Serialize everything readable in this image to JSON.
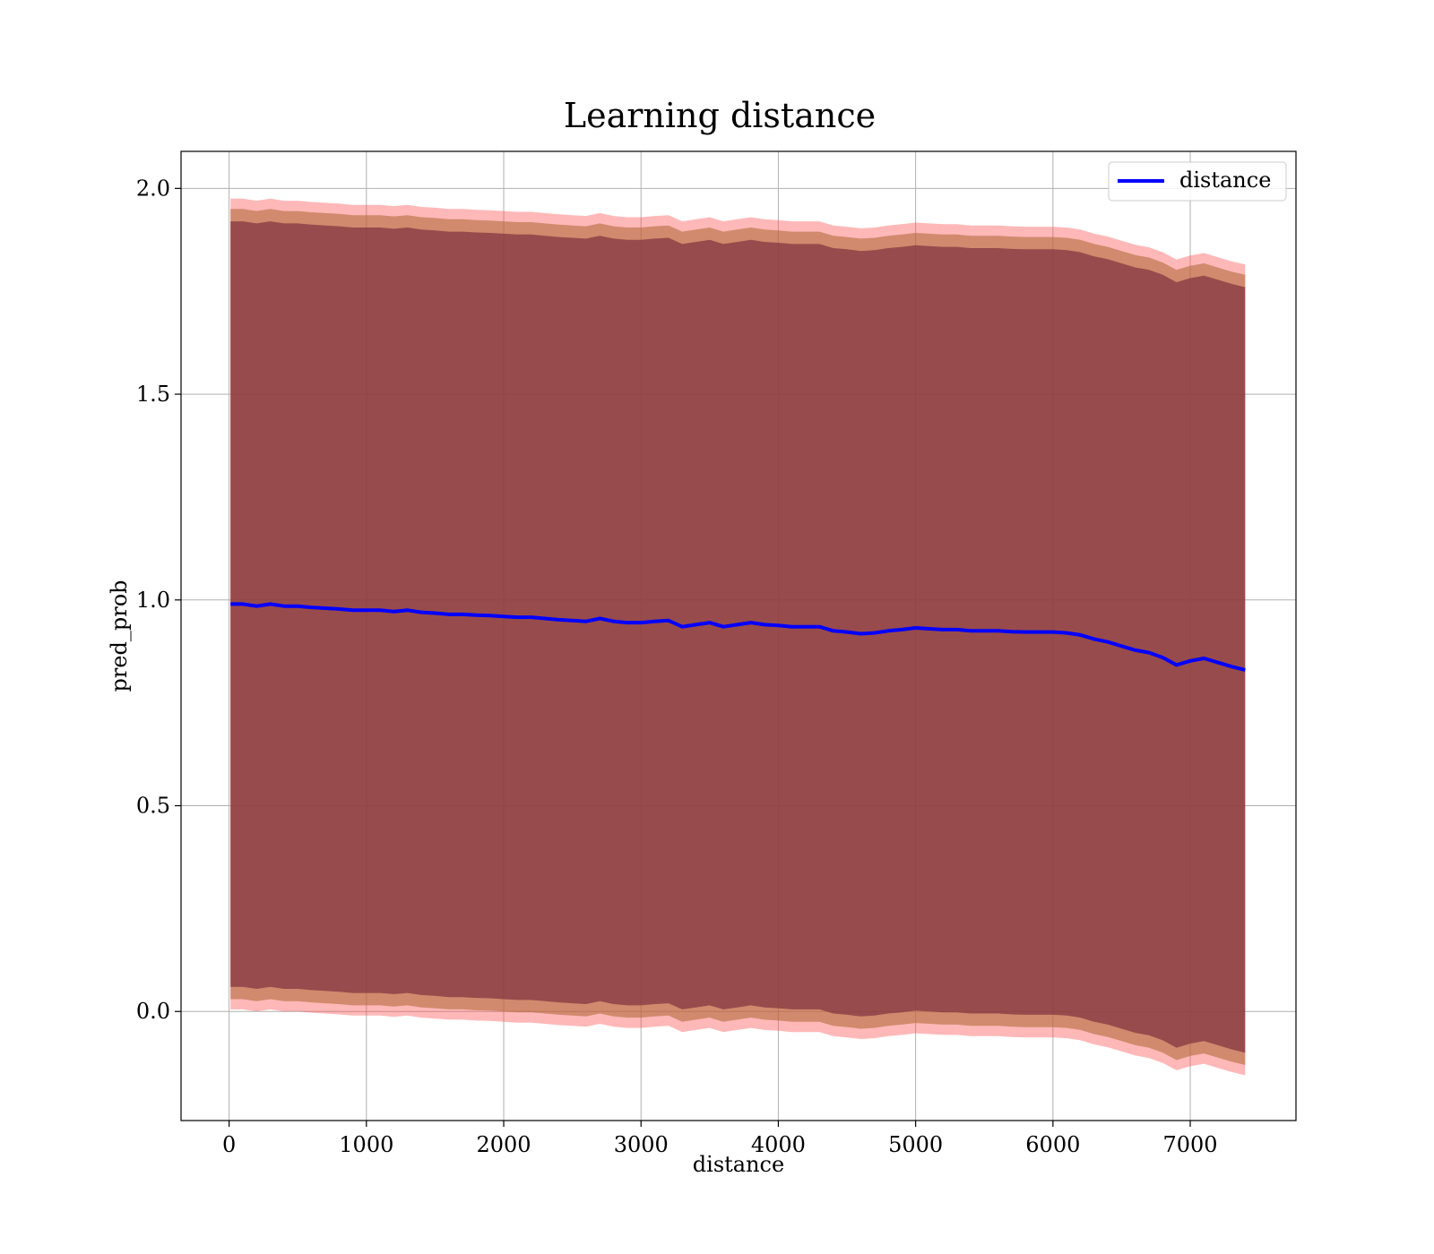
{
  "chart_data": {
    "type": "line",
    "title": "Learning distance",
    "xlabel": "distance",
    "ylabel": "pred_prob",
    "xlim": [
      -350,
      7770
    ],
    "ylim": [
      -0.265,
      2.09
    ],
    "xticks": [
      0,
      1000,
      2000,
      3000,
      4000,
      5000,
      6000,
      7000
    ],
    "yticks": [
      0.0,
      0.5,
      1.0,
      1.5,
      2.0
    ],
    "xtick_labels": [
      "0",
      "1000",
      "2000",
      "3000",
      "4000",
      "5000",
      "6000",
      "7000"
    ],
    "ytick_labels": [
      "0.0",
      "0.5",
      "1.0",
      "1.5",
      "2.0"
    ],
    "grid": true,
    "legend": {
      "position": "top-right",
      "entries": [
        "distance"
      ]
    },
    "colors": {
      "line": "#0000ff",
      "inner_band": "#80303f",
      "middle_band": "#b36b3a",
      "outer_band": "#ff4d4d",
      "grid": "#b0b0b0"
    },
    "series": [
      {
        "name": "distance",
        "x": [
          10,
          100,
          200,
          300,
          400,
          500,
          600,
          700,
          800,
          900,
          1000,
          1100,
          1200,
          1300,
          1400,
          1500,
          1600,
          1700,
          1800,
          1900,
          2000,
          2100,
          2200,
          2300,
          2400,
          2500,
          2600,
          2700,
          2800,
          2900,
          3000,
          3100,
          3200,
          3300,
          3400,
          3500,
          3600,
          3700,
          3800,
          3900,
          4000,
          4100,
          4200,
          4300,
          4400,
          4500,
          4600,
          4700,
          4800,
          4900,
          5000,
          5100,
          5200,
          5300,
          5400,
          5500,
          5600,
          5700,
          5800,
          5900,
          6000,
          6100,
          6200,
          6300,
          6400,
          6500,
          6600,
          6700,
          6800,
          6900,
          7000,
          7100,
          7200,
          7300,
          7400
        ],
        "y": [
          0.99,
          0.99,
          0.985,
          0.99,
          0.985,
          0.985,
          0.982,
          0.98,
          0.978,
          0.975,
          0.975,
          0.975,
          0.972,
          0.975,
          0.97,
          0.968,
          0.965,
          0.965,
          0.963,
          0.962,
          0.96,
          0.958,
          0.958,
          0.955,
          0.952,
          0.95,
          0.948,
          0.955,
          0.948,
          0.945,
          0.945,
          0.948,
          0.95,
          0.935,
          0.94,
          0.945,
          0.935,
          0.94,
          0.945,
          0.94,
          0.938,
          0.935,
          0.935,
          0.935,
          0.925,
          0.922,
          0.918,
          0.92,
          0.925,
          0.928,
          0.932,
          0.93,
          0.928,
          0.928,
          0.925,
          0.925,
          0.925,
          0.923,
          0.922,
          0.922,
          0.922,
          0.92,
          0.915,
          0.905,
          0.898,
          0.888,
          0.878,
          0.872,
          0.86,
          0.842,
          0.852,
          0.858,
          0.848,
          0.838,
          0.83
        ],
        "band_inner_halfwidth": 0.93,
        "band_middle_halfwidth": 0.96,
        "band_outer_halfwidth": 0.985
      }
    ]
  }
}
